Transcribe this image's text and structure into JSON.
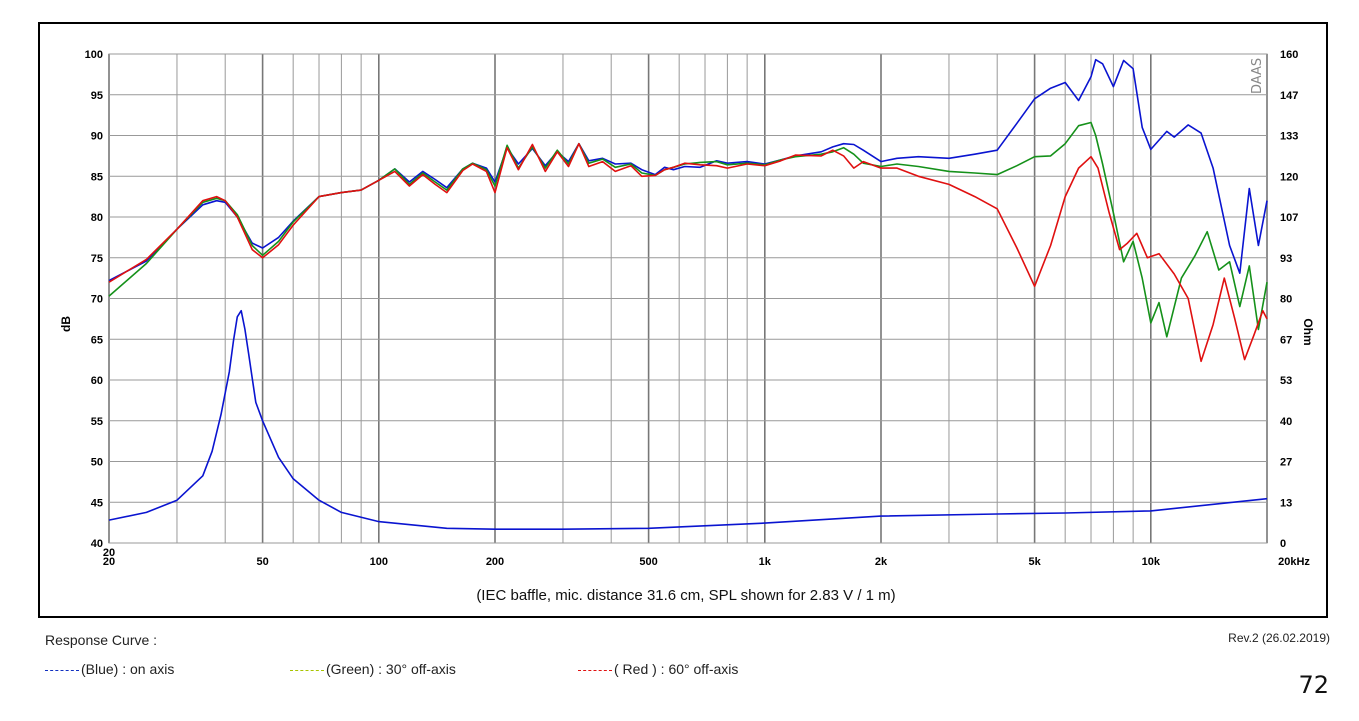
{
  "chart_data": {
    "type": "line",
    "xlabel": "",
    "ylabel": "dB",
    "y2label": "Ohm",
    "x_scale": "log",
    "xlim": [
      20,
      20000
    ],
    "ylim": [
      40,
      100
    ],
    "y2lim": [
      0,
      160
    ],
    "grid": true,
    "x_ticks": [
      {
        "value": 20,
        "label": "20"
      },
      {
        "value": 50,
        "label": "50"
      },
      {
        "value": 100,
        "label": "100"
      },
      {
        "value": 200,
        "label": "200"
      },
      {
        "value": 500,
        "label": "500"
      },
      {
        "value": 1000,
        "label": "1k"
      },
      {
        "value": 2000,
        "label": "2k"
      },
      {
        "value": 5000,
        "label": "5k"
      },
      {
        "value": 10000,
        "label": "10k"
      },
      {
        "value": 20000,
        "label": "20kHz"
      }
    ],
    "x_extra_label": "20",
    "y_ticks": [
      "40",
      "45",
      "50",
      "55",
      "60",
      "65",
      "70",
      "75",
      "80",
      "85",
      "90",
      "95",
      "100"
    ],
    "y2_ticks": [
      "0",
      "13",
      "27",
      "40",
      "53",
      "67",
      "80",
      "93",
      "107",
      "120",
      "133",
      "147",
      "160"
    ],
    "caption": "(IEC baffle, mic. distance 31.6 cm, SPL shown for 2.83 V / 1 m)",
    "watermark": "DAAS",
    "series": [
      {
        "name": "(Blue) : on axis",
        "color": "#0a14d0",
        "points": [
          [
            20,
            72.2
          ],
          [
            25,
            74.6
          ],
          [
            30,
            78.5
          ],
          [
            35,
            81.5
          ],
          [
            38,
            82.0
          ],
          [
            40,
            81.8
          ],
          [
            43,
            80.0
          ],
          [
            47,
            76.8
          ],
          [
            50,
            76.2
          ],
          [
            55,
            77.5
          ],
          [
            60,
            79.5
          ],
          [
            70,
            82.5
          ],
          [
            80,
            83.0
          ],
          [
            90,
            83.3
          ],
          [
            100,
            84.5
          ],
          [
            110,
            85.9
          ],
          [
            120,
            84.3
          ],
          [
            130,
            85.6
          ],
          [
            140,
            84.6
          ],
          [
            150,
            83.6
          ],
          [
            165,
            85.9
          ],
          [
            175,
            86.6
          ],
          [
            190,
            86.0
          ],
          [
            200,
            84.3
          ],
          [
            215,
            88.5
          ],
          [
            230,
            86.5
          ],
          [
            250,
            88.4
          ],
          [
            270,
            86.3
          ],
          [
            290,
            88.0
          ],
          [
            310,
            86.8
          ],
          [
            330,
            89.0
          ],
          [
            350,
            86.9
          ],
          [
            380,
            87.2
          ],
          [
            410,
            86.5
          ],
          [
            450,
            86.6
          ],
          [
            480,
            85.8
          ],
          [
            520,
            85.2
          ],
          [
            550,
            86.1
          ],
          [
            580,
            85.8
          ],
          [
            620,
            86.2
          ],
          [
            680,
            86.1
          ],
          [
            750,
            86.9
          ],
          [
            800,
            86.6
          ],
          [
            900,
            86.8
          ],
          [
            1000,
            86.5
          ],
          [
            1100,
            87.0
          ],
          [
            1200,
            87.5
          ],
          [
            1400,
            88.0
          ],
          [
            1500,
            88.6
          ],
          [
            1600,
            89.0
          ],
          [
            1700,
            88.9
          ],
          [
            1800,
            88.2
          ],
          [
            2000,
            86.8
          ],
          [
            2200,
            87.2
          ],
          [
            2500,
            87.4
          ],
          [
            3000,
            87.2
          ],
          [
            3500,
            87.7
          ],
          [
            4000,
            88.2
          ],
          [
            4500,
            91.5
          ],
          [
            5000,
            94.5
          ],
          [
            5500,
            95.8
          ],
          [
            6000,
            96.5
          ],
          [
            6500,
            94.3
          ],
          [
            7000,
            97.2
          ],
          [
            7200,
            99.3
          ],
          [
            7500,
            98.8
          ],
          [
            8000,
            96.0
          ],
          [
            8500,
            99.2
          ],
          [
            9000,
            98.2
          ],
          [
            9500,
            91.0
          ],
          [
            10000,
            88.3
          ],
          [
            11000,
            90.5
          ],
          [
            11500,
            89.8
          ],
          [
            12500,
            91.3
          ],
          [
            13500,
            90.3
          ],
          [
            14500,
            86.0
          ],
          [
            16000,
            76.5
          ],
          [
            17000,
            73.1
          ],
          [
            18000,
            83.5
          ],
          [
            19000,
            76.5
          ],
          [
            20000,
            82.0
          ]
        ]
      },
      {
        "name": "(Green) : 30° off-axis",
        "color": "#15911a",
        "points": [
          [
            20,
            70.3
          ],
          [
            25,
            74.3
          ],
          [
            30,
            78.5
          ],
          [
            35,
            81.8
          ],
          [
            38,
            82.3
          ],
          [
            40,
            82.0
          ],
          [
            43,
            80.3
          ],
          [
            47,
            76.5
          ],
          [
            50,
            75.3
          ],
          [
            55,
            77.0
          ],
          [
            60,
            79.4
          ],
          [
            70,
            82.5
          ],
          [
            80,
            83.0
          ],
          [
            90,
            83.3
          ],
          [
            100,
            84.5
          ],
          [
            110,
            85.9
          ],
          [
            120,
            84.0
          ],
          [
            130,
            85.4
          ],
          [
            140,
            84.3
          ],
          [
            150,
            83.3
          ],
          [
            165,
            85.9
          ],
          [
            175,
            86.6
          ],
          [
            190,
            85.8
          ],
          [
            200,
            83.8
          ],
          [
            215,
            88.8
          ],
          [
            230,
            86.0
          ],
          [
            250,
            88.6
          ],
          [
            270,
            86.0
          ],
          [
            290,
            88.2
          ],
          [
            310,
            86.5
          ],
          [
            330,
            89.0
          ],
          [
            350,
            86.6
          ],
          [
            380,
            87.1
          ],
          [
            410,
            86.1
          ],
          [
            450,
            86.5
          ],
          [
            480,
            85.4
          ],
          [
            520,
            85.1
          ],
          [
            550,
            85.8
          ],
          [
            580,
            86.1
          ],
          [
            620,
            86.5
          ],
          [
            680,
            86.7
          ],
          [
            750,
            86.8
          ],
          [
            800,
            86.4
          ],
          [
            900,
            86.6
          ],
          [
            1000,
            86.4
          ],
          [
            1100,
            87.0
          ],
          [
            1200,
            87.4
          ],
          [
            1400,
            87.7
          ],
          [
            1500,
            88.0
          ],
          [
            1600,
            88.5
          ],
          [
            1700,
            87.7
          ],
          [
            1800,
            86.6
          ],
          [
            2000,
            86.2
          ],
          [
            2200,
            86.5
          ],
          [
            2500,
            86.2
          ],
          [
            3000,
            85.6
          ],
          [
            3500,
            85.4
          ],
          [
            4000,
            85.2
          ],
          [
            4500,
            86.3
          ],
          [
            5000,
            87.4
          ],
          [
            5500,
            87.5
          ],
          [
            6000,
            89.0
          ],
          [
            6500,
            91.2
          ],
          [
            7000,
            91.6
          ],
          [
            7200,
            90.0
          ],
          [
            7500,
            86.5
          ],
          [
            8000,
            80.5
          ],
          [
            8500,
            74.5
          ],
          [
            9000,
            77.0
          ],
          [
            9500,
            72.5
          ],
          [
            10000,
            67.0
          ],
          [
            10500,
            69.5
          ],
          [
            11000,
            65.3
          ],
          [
            12000,
            72.5
          ],
          [
            13000,
            75.2
          ],
          [
            14000,
            78.2
          ],
          [
            15000,
            73.5
          ],
          [
            16000,
            74.5
          ],
          [
            17000,
            69.0
          ],
          [
            18000,
            74.0
          ],
          [
            19000,
            66.2
          ],
          [
            20000,
            72.0
          ]
        ]
      },
      {
        "name": "( Red ) : 60° off-axis",
        "color": "#e01010",
        "points": [
          [
            20,
            72.0
          ],
          [
            25,
            74.8
          ],
          [
            30,
            78.5
          ],
          [
            35,
            82.0
          ],
          [
            38,
            82.5
          ],
          [
            40,
            82.0
          ],
          [
            43,
            80.0
          ],
          [
            47,
            76.0
          ],
          [
            50,
            75.0
          ],
          [
            55,
            76.6
          ],
          [
            60,
            79.0
          ],
          [
            70,
            82.5
          ],
          [
            80,
            83.0
          ],
          [
            90,
            83.3
          ],
          [
            100,
            84.5
          ],
          [
            110,
            85.6
          ],
          [
            120,
            83.8
          ],
          [
            130,
            85.2
          ],
          [
            140,
            84.0
          ],
          [
            150,
            83.0
          ],
          [
            165,
            85.7
          ],
          [
            175,
            86.5
          ],
          [
            190,
            85.6
          ],
          [
            200,
            83.0
          ],
          [
            215,
            88.5
          ],
          [
            230,
            85.8
          ],
          [
            250,
            88.9
          ],
          [
            270,
            85.6
          ],
          [
            290,
            88.0
          ],
          [
            310,
            86.2
          ],
          [
            330,
            89.0
          ],
          [
            350,
            86.2
          ],
          [
            380,
            86.8
          ],
          [
            410,
            85.6
          ],
          [
            450,
            86.3
          ],
          [
            480,
            85.0
          ],
          [
            520,
            85.1
          ],
          [
            550,
            85.8
          ],
          [
            580,
            86.1
          ],
          [
            620,
            86.6
          ],
          [
            680,
            86.4
          ],
          [
            750,
            86.3
          ],
          [
            800,
            86.0
          ],
          [
            900,
            86.5
          ],
          [
            1000,
            86.3
          ],
          [
            1100,
            86.9
          ],
          [
            1200,
            87.6
          ],
          [
            1400,
            87.5
          ],
          [
            1500,
            88.2
          ],
          [
            1600,
            87.5
          ],
          [
            1700,
            86.0
          ],
          [
            1800,
            86.8
          ],
          [
            2000,
            86.0
          ],
          [
            2200,
            86.0
          ],
          [
            2500,
            85.0
          ],
          [
            3000,
            84.0
          ],
          [
            3500,
            82.5
          ],
          [
            4000,
            81.0
          ],
          [
            4500,
            76.2
          ],
          [
            5000,
            71.5
          ],
          [
            5500,
            76.5
          ],
          [
            6000,
            82.5
          ],
          [
            6500,
            86.0
          ],
          [
            7000,
            87.4
          ],
          [
            7300,
            86.0
          ],
          [
            7800,
            80.5
          ],
          [
            8300,
            76.0
          ],
          [
            8700,
            76.8
          ],
          [
            9200,
            78.0
          ],
          [
            9800,
            75.0
          ],
          [
            10500,
            75.5
          ],
          [
            11500,
            73.0
          ],
          [
            12500,
            70.0
          ],
          [
            13500,
            62.3
          ],
          [
            14500,
            66.8
          ],
          [
            15500,
            72.5
          ],
          [
            16500,
            67.5
          ],
          [
            17500,
            62.5
          ],
          [
            18500,
            65.5
          ],
          [
            19500,
            68.5
          ],
          [
            20000,
            67.5
          ]
        ]
      },
      {
        "name": "Impedance",
        "color": "#0a14d0",
        "axis": "right",
        "points": [
          [
            20,
            7.5
          ],
          [
            25,
            10
          ],
          [
            30,
            14
          ],
          [
            35,
            22
          ],
          [
            37,
            30
          ],
          [
            39,
            42
          ],
          [
            41,
            56
          ],
          [
            42,
            66
          ],
          [
            43,
            74
          ],
          [
            44,
            76
          ],
          [
            45,
            70
          ],
          [
            46,
            62
          ],
          [
            47,
            54
          ],
          [
            48,
            46
          ],
          [
            50,
            40
          ],
          [
            55,
            28
          ],
          [
            60,
            21
          ],
          [
            70,
            14
          ],
          [
            80,
            10
          ],
          [
            100,
            7
          ],
          [
            150,
            4.8
          ],
          [
            200,
            4.5
          ],
          [
            300,
            4.5
          ],
          [
            500,
            4.8
          ],
          [
            1000,
            6.5
          ],
          [
            2000,
            8.8
          ],
          [
            4000,
            9.5
          ],
          [
            6000,
            9.8
          ],
          [
            10000,
            10.5
          ],
          [
            20000,
            14.5
          ]
        ]
      }
    ]
  },
  "footer": {
    "title": "Response Curve :",
    "revision": "Rev.2 (26.02.2019)",
    "legend": [
      "(Blue)  : on axis",
      "(Green) : 30° off-axis",
      "( Red ) : 60° off-axis"
    ],
    "legend_colors": [
      "#1030c0",
      "#a8c400",
      "#e01010"
    ],
    "page_number": "72"
  }
}
